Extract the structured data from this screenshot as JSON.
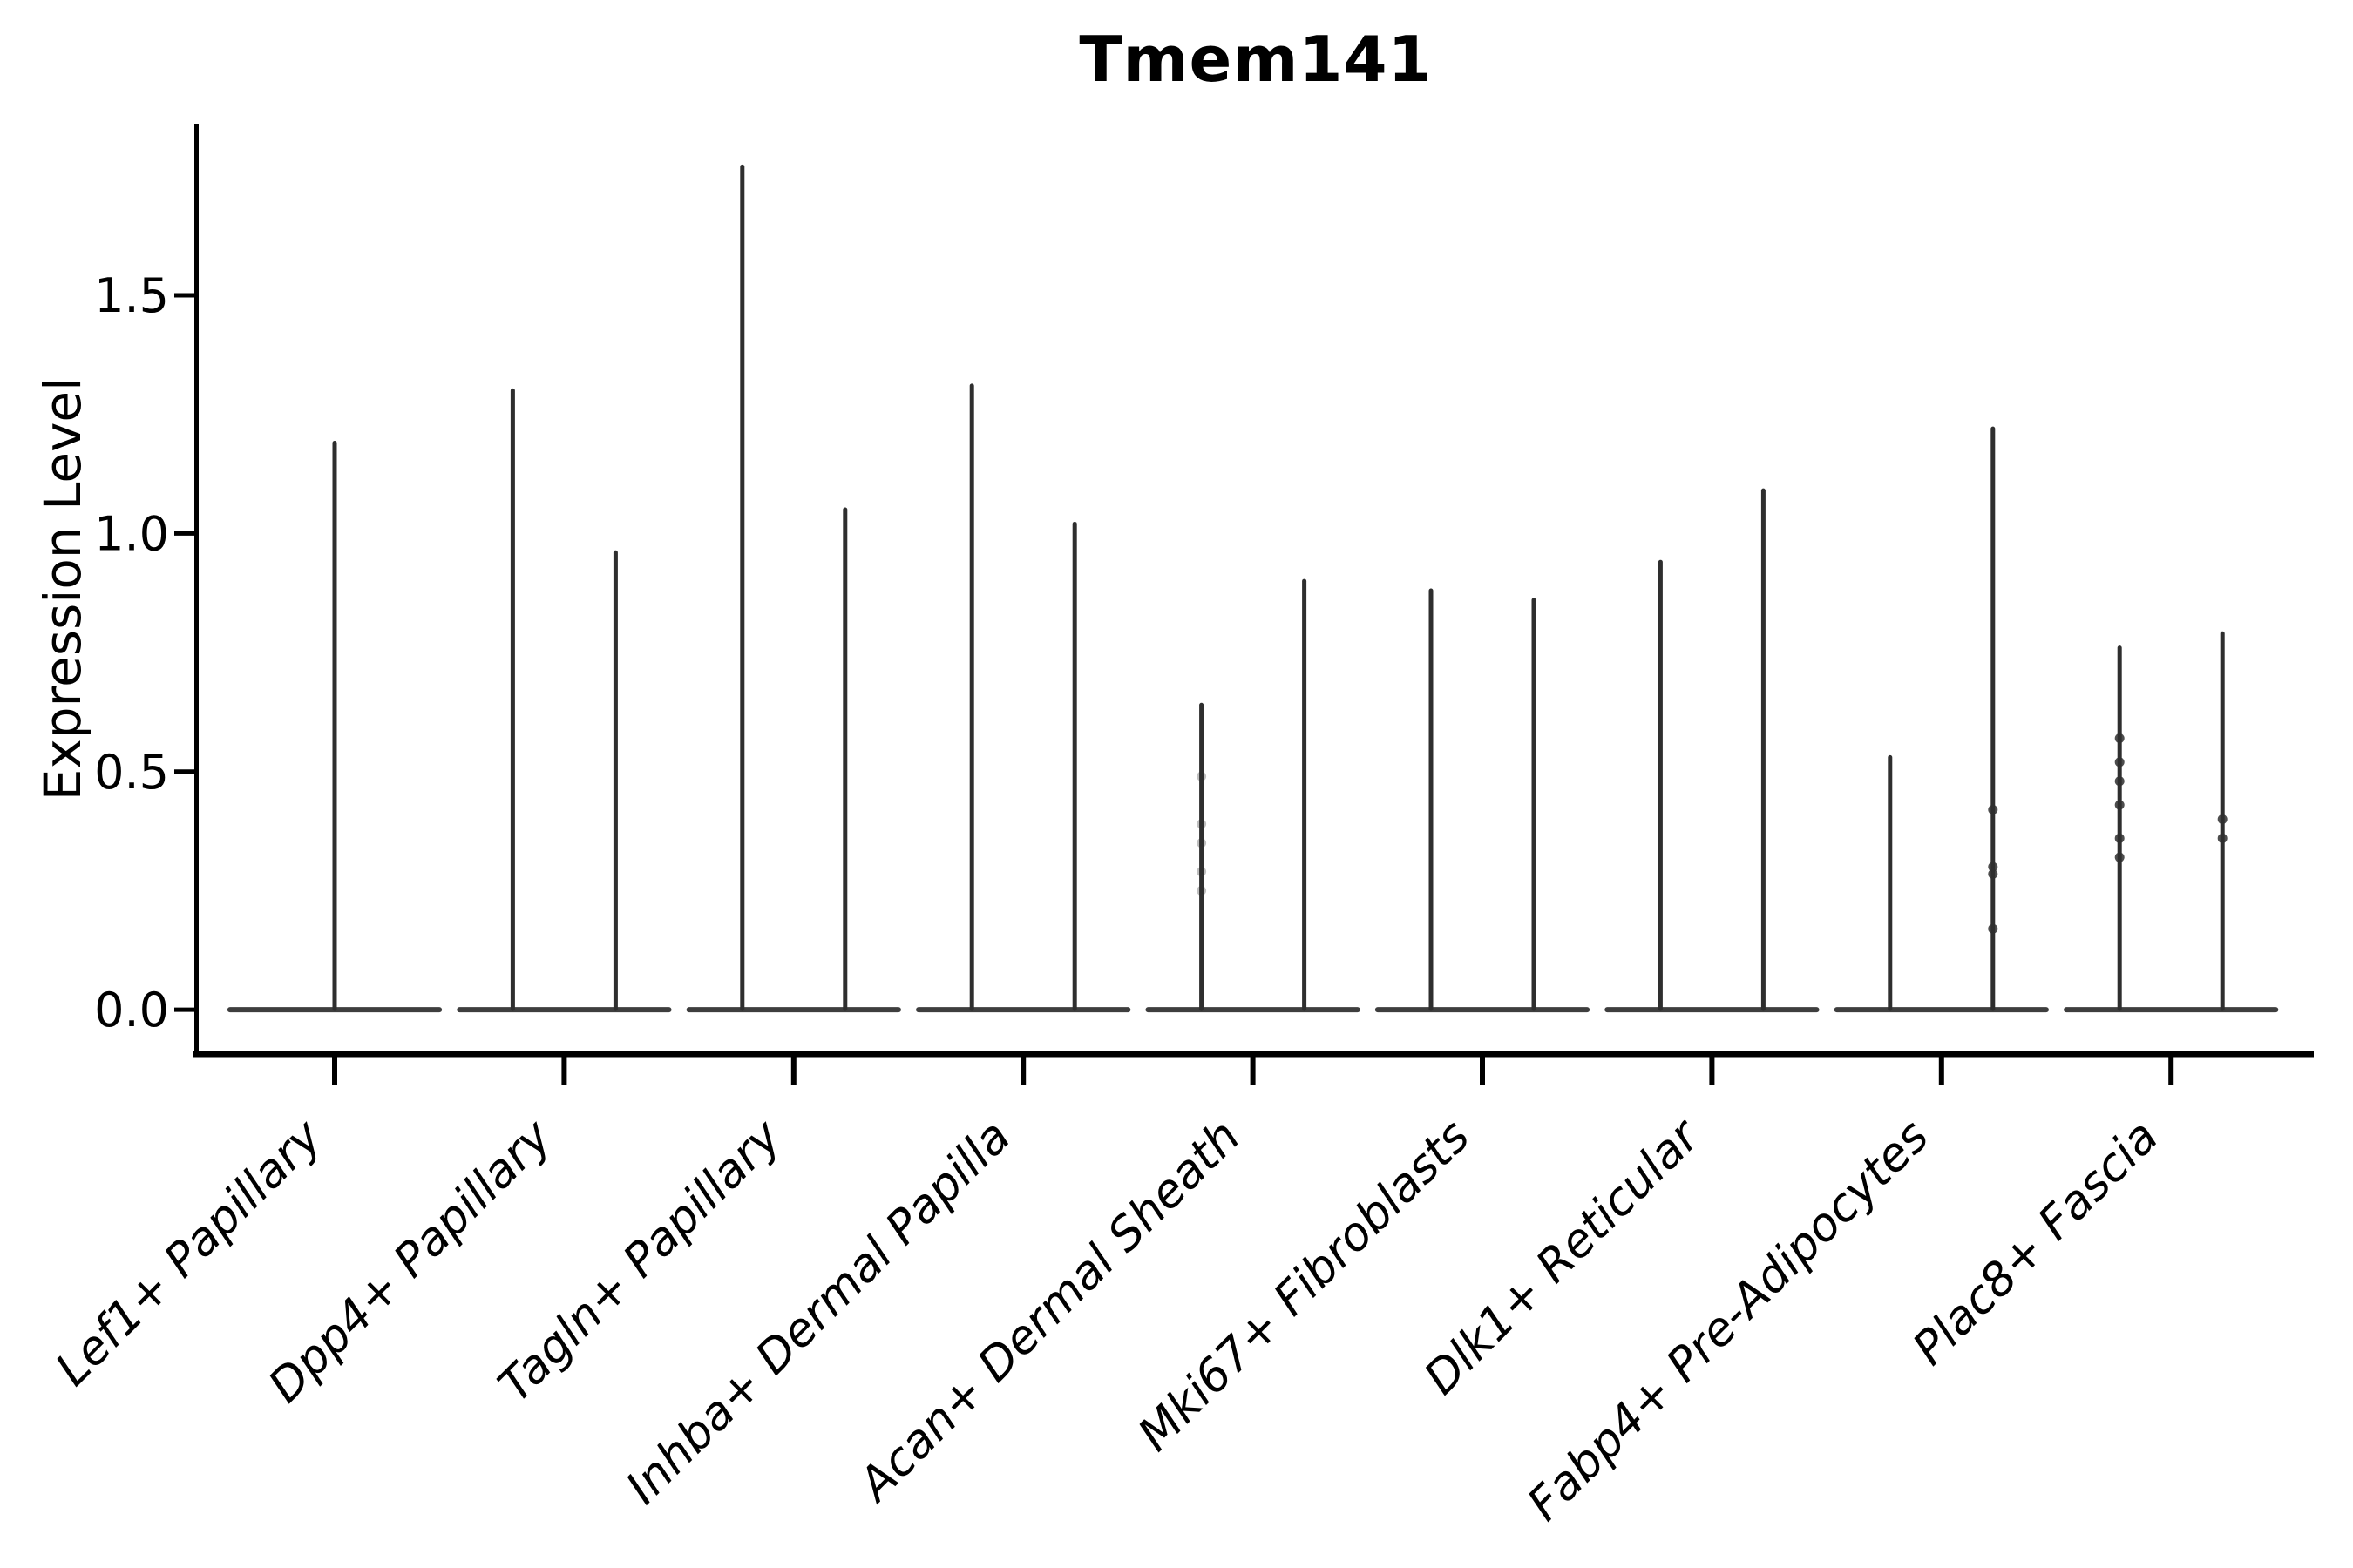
{
  "chart_data": {
    "type": "violin",
    "title": "Tmem141",
    "ylabel": "Expression Level",
    "xlabel": "",
    "ytick_labels": [
      "0.0",
      "0.5",
      "1.0",
      "1.5"
    ],
    "ytick_values": [
      0.0,
      0.5,
      1.0,
      1.5
    ],
    "ylim": [
      -0.093,
      1.853
    ],
    "grid": false,
    "legend_position": "none",
    "description": "Violin plot of single-gene expression per fibroblast cluster; each violin is collapsed to a wide flat base at 0 with thin density spikes reaching the maximum expression values.",
    "style": {
      "violin_color": "#2e2e2e",
      "axis_color": "#000000",
      "text_color": "#000000",
      "x_label_style": "italic",
      "x_label_rotation_deg": 45,
      "base_halfwidth_frac": 0.456,
      "spike_offset_frac": 0.224
    },
    "categories": [
      {
        "label": "Lef1+ Papillary",
        "base_value": 0.0,
        "spikes": [
          {
            "offset": 0.0,
            "max": 1.19
          }
        ]
      },
      {
        "label": "Dpp4+ Papillary",
        "base_value": 0.0,
        "spikes": [
          {
            "offset": -0.224,
            "max": 1.3
          },
          {
            "offset": 0.224,
            "max": 0.96
          }
        ]
      },
      {
        "label": "Tagln+ Papillary",
        "base_value": 0.0,
        "spikes": [
          {
            "offset": -0.224,
            "max": 1.77
          },
          {
            "offset": 0.224,
            "max": 1.05
          }
        ]
      },
      {
        "label": "Inhba+ Dermal Papilla",
        "base_value": 0.0,
        "spikes": [
          {
            "offset": -0.224,
            "max": 1.31
          },
          {
            "offset": 0.224,
            "max": 1.02
          }
        ]
      },
      {
        "label": "Acan+ Dermal Sheath",
        "base_value": 0.0,
        "spikes": [
          {
            "offset": -0.224,
            "max": 0.64
          },
          {
            "offset": 0.224,
            "max": 0.9
          }
        ]
      },
      {
        "label": "Mki67+ Fibroblasts",
        "base_value": 0.0,
        "spikes": [
          {
            "offset": -0.224,
            "max": 0.88
          },
          {
            "offset": 0.224,
            "max": 0.86
          }
        ]
      },
      {
        "label": "Dlk1+ Reticular",
        "base_value": 0.0,
        "spikes": [
          {
            "offset": -0.224,
            "max": 0.94
          },
          {
            "offset": 0.224,
            "max": 1.09
          }
        ]
      },
      {
        "label": "Fabp4+ Pre-Adipocytes",
        "base_value": 0.0,
        "spikes": [
          {
            "offset": -0.224,
            "max": 0.53
          },
          {
            "offset": 0.224,
            "max": 1.22
          }
        ]
      },
      {
        "label": "Plac8+ Fascia",
        "base_value": 0.0,
        "spikes": [
          {
            "offset": -0.224,
            "max": 0.76
          },
          {
            "offset": 0.224,
            "max": 0.79
          }
        ]
      }
    ],
    "scatter_points": [
      {
        "category": "Acan+ Dermal Sheath",
        "offset": -0.224,
        "values": [
          0.49,
          0.39,
          0.35,
          0.29,
          0.25
        ],
        "faint": true
      },
      {
        "category": "Fabp4+ Pre-Adipocytes",
        "offset": 0.224,
        "values": [
          0.42,
          0.3,
          0.285,
          0.17
        ],
        "faint": false
      },
      {
        "category": "Plac8+ Fascia",
        "offset": -0.224,
        "values": [
          0.57,
          0.52,
          0.48,
          0.43,
          0.36,
          0.32
        ],
        "faint": false
      },
      {
        "category": "Plac8+ Fascia",
        "offset": 0.224,
        "values": [
          0.4,
          0.36
        ],
        "faint": false
      }
    ]
  }
}
